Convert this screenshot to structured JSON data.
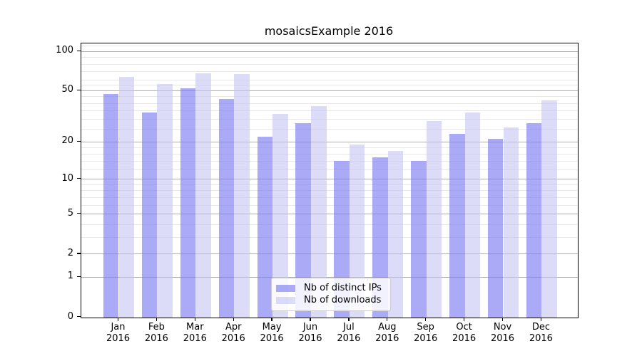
{
  "chart_data": {
    "type": "bar",
    "title": "mosaicsExample 2016",
    "categories": [
      "Jan",
      "Feb",
      "Mar",
      "Apr",
      "May",
      "Jun",
      "Jul",
      "Aug",
      "Sep",
      "Oct",
      "Nov",
      "Dec"
    ],
    "xtick_year": "2016",
    "series": [
      {
        "name": "Nb of distinct IPs",
        "color": "#7d7df3",
        "alpha": 0.65,
        "values": [
          47,
          34,
          52,
          43,
          22,
          28,
          14,
          15,
          14,
          23,
          21,
          28
        ]
      },
      {
        "name": "Nb of downloads",
        "color": "#c4c4f3",
        "alpha": 0.6,
        "values": [
          64,
          56,
          68,
          67,
          33,
          38,
          19,
          17,
          29,
          34,
          26,
          42
        ]
      }
    ],
    "yscale": "log1p",
    "ylim": [
      0,
      115
    ],
    "ytick_labels": [
      "100",
      "50",
      "20",
      "10",
      "5",
      "2",
      "1",
      "0"
    ],
    "ytick_values": [
      100,
      50,
      20,
      10,
      5,
      2,
      1,
      0
    ],
    "minor_gridline_values": [
      3,
      4,
      6,
      7,
      8,
      9,
      12,
      14,
      16,
      18,
      25,
      30,
      35,
      40,
      45,
      55,
      60,
      70,
      80,
      90,
      110
    ],
    "grid": true,
    "legend_position": "lower center inside"
  }
}
